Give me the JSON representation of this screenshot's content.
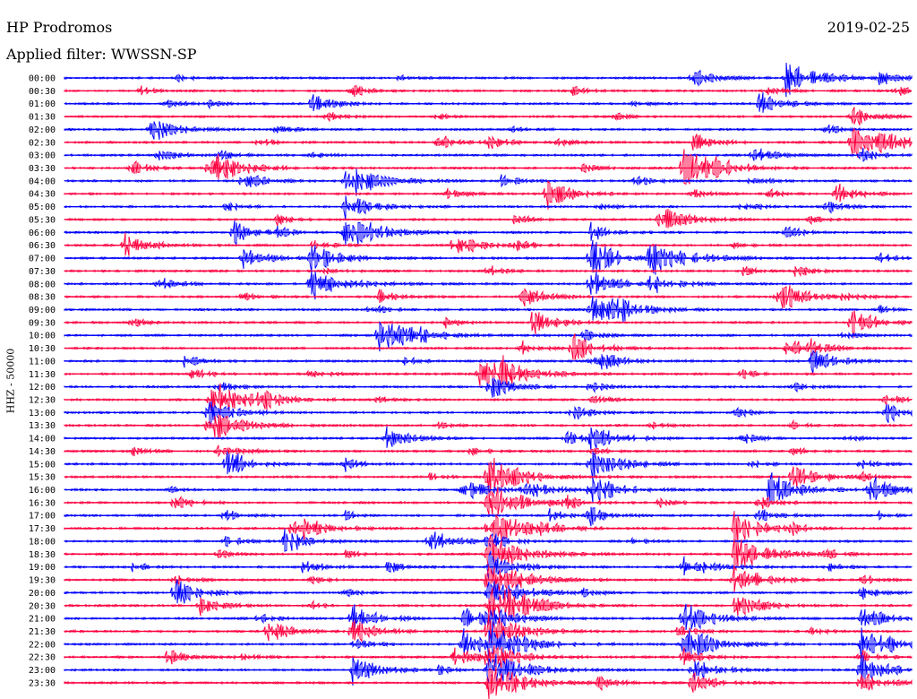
{
  "header": {
    "station": "HP Prodromos",
    "filter": "Applied filter: WWSSN-SP",
    "date": "2019-02-25"
  },
  "chart_data": {
    "type": "line",
    "title": "HP Prodromos",
    "subtitle": "Applied filter: WWSSN-SP",
    "ylabel": "HHZ - 50000",
    "date": "2019-02-25",
    "row_minutes": 30,
    "colors": [
      "#0000ff",
      "#ff0040"
    ],
    "rows": [
      {
        "label": "00:00",
        "color": "#0000ff",
        "events": [
          [
            13,
            0.4
          ],
          [
            74,
            0.9
          ],
          [
            85,
            1.6
          ],
          [
            96,
            0.7
          ],
          [
            39,
            0.3
          ]
        ]
      },
      {
        "label": "00:30",
        "color": "#ff0040",
        "events": [
          [
            9,
            0.4
          ],
          [
            34,
            0.5
          ],
          [
            60,
            0.4
          ],
          [
            83,
            0.4
          ],
          [
            98,
            0.5
          ]
        ]
      },
      {
        "label": "01:00",
        "color": "#0000ff",
        "events": [
          [
            12,
            0.4
          ],
          [
            17,
            0.3
          ],
          [
            29,
            0.9
          ],
          [
            82,
            1.0
          ],
          [
            67,
            0.3
          ]
        ]
      },
      {
        "label": "01:30",
        "color": "#ff0040",
        "events": [
          [
            31,
            0.5
          ],
          [
            44,
            0.3
          ],
          [
            93,
            0.9
          ],
          [
            65,
            0.3
          ]
        ]
      },
      {
        "label": "02:00",
        "color": "#0000ff",
        "events": [
          [
            10,
            1.2
          ],
          [
            25,
            0.4
          ],
          [
            53,
            0.3
          ],
          [
            90,
            0.4
          ]
        ]
      },
      {
        "label": "02:30",
        "color": "#ff0040",
        "events": [
          [
            23,
            0.4
          ],
          [
            44,
            0.8
          ],
          [
            50,
            0.6
          ],
          [
            58,
            0.4
          ],
          [
            74,
            0.9
          ],
          [
            93,
            1.4
          ],
          [
            96,
            1.0
          ]
        ]
      },
      {
        "label": "03:00",
        "color": "#0000ff",
        "events": [
          [
            11,
            0.6
          ],
          [
            18,
            0.5
          ],
          [
            29,
            0.4
          ],
          [
            81,
            0.8
          ],
          [
            94,
            0.6
          ]
        ]
      },
      {
        "label": "03:30",
        "color": "#ff0040",
        "events": [
          [
            8,
            0.6
          ],
          [
            17,
            1.6
          ],
          [
            61,
            0.5
          ],
          [
            73,
            1.7
          ],
          [
            76,
            0.9
          ]
        ]
      },
      {
        "label": "04:00",
        "color": "#0000ff",
        "events": [
          [
            21,
            0.8
          ],
          [
            33,
            1.7
          ],
          [
            51,
            0.6
          ],
          [
            67,
            0.6
          ],
          [
            81,
            0.5
          ]
        ]
      },
      {
        "label": "04:30",
        "color": "#ff0040",
        "events": [
          [
            45,
            0.5
          ],
          [
            57,
            1.2
          ],
          [
            74,
            0.4
          ],
          [
            83,
            0.4
          ],
          [
            91,
            0.9
          ]
        ]
      },
      {
        "label": "05:00",
        "color": "#0000ff",
        "events": [
          [
            19,
            0.4
          ],
          [
            33,
            1.2
          ],
          [
            63,
            0.4
          ],
          [
            80,
            0.5
          ],
          [
            90,
            0.6
          ]
        ]
      },
      {
        "label": "05:30",
        "color": "#ff0040",
        "events": [
          [
            25,
            0.5
          ],
          [
            53,
            0.5
          ],
          [
            70,
            1.3
          ],
          [
            88,
            0.4
          ]
        ]
      },
      {
        "label": "06:00",
        "color": "#0000ff",
        "events": [
          [
            20,
            1.0
          ],
          [
            25,
            0.5
          ],
          [
            33,
            1.8
          ],
          [
            62,
            0.8
          ],
          [
            85,
            0.6
          ]
        ]
      },
      {
        "label": "06:30",
        "color": "#ff0040",
        "events": [
          [
            7,
            1.1
          ],
          [
            29,
            0.6
          ],
          [
            46,
            1.1
          ],
          [
            53,
            0.6
          ],
          [
            79,
            0.3
          ]
        ]
      },
      {
        "label": "07:00",
        "color": "#0000ff",
        "events": [
          [
            21,
            1.0
          ],
          [
            29,
            1.3
          ],
          [
            62,
            1.6
          ],
          [
            69,
            1.8
          ],
          [
            96,
            0.5
          ]
        ]
      },
      {
        "label": "07:30",
        "color": "#ff0040",
        "events": [
          [
            31,
            0.4
          ],
          [
            50,
            0.5
          ],
          [
            80,
            0.4
          ],
          [
            86,
            0.6
          ]
        ]
      },
      {
        "label": "08:00",
        "color": "#0000ff",
        "events": [
          [
            11,
            0.6
          ],
          [
            29,
            1.6
          ],
          [
            62,
            1.2
          ],
          [
            69,
            1.0
          ]
        ]
      },
      {
        "label": "08:30",
        "color": "#ff0040",
        "events": [
          [
            21,
            0.4
          ],
          [
            37,
            0.6
          ],
          [
            54,
            1.0
          ],
          [
            84,
            1.5
          ],
          [
            92,
            0.4
          ]
        ]
      },
      {
        "label": "09:00",
        "color": "#0000ff",
        "events": [
          [
            36,
            0.5
          ],
          [
            62,
            1.8
          ],
          [
            65,
            0.7
          ],
          [
            96,
            0.4
          ]
        ]
      },
      {
        "label": "09:30",
        "color": "#ff0040",
        "events": [
          [
            8,
            0.4
          ],
          [
            45,
            0.4
          ],
          [
            55,
            1.1
          ],
          [
            93,
            1.2
          ]
        ]
      },
      {
        "label": "10:00",
        "color": "#0000ff",
        "events": [
          [
            37,
            1.7
          ],
          [
            40,
            0.8
          ],
          [
            61,
            0.6
          ],
          [
            92,
            0.4
          ]
        ]
      },
      {
        "label": "10:30",
        "color": "#ff0040",
        "events": [
          [
            54,
            0.6
          ],
          [
            60,
            1.2
          ],
          [
            85,
            1.0
          ],
          [
            88,
            0.6
          ]
        ]
      },
      {
        "label": "11:00",
        "color": "#0000ff",
        "events": [
          [
            14,
            0.6
          ],
          [
            40,
            0.4
          ],
          [
            62,
            1.2
          ],
          [
            88,
            1.1
          ]
        ]
      },
      {
        "label": "11:30",
        "color": "#ff0040",
        "events": [
          [
            15,
            0.6
          ],
          [
            29,
            0.5
          ],
          [
            49,
            1.2
          ],
          [
            51,
            1.4
          ],
          [
            80,
            0.4
          ]
        ]
      },
      {
        "label": "12:00",
        "color": "#0000ff",
        "events": [
          [
            18,
            0.5
          ],
          [
            50,
            1.1
          ],
          [
            62,
            0.5
          ],
          [
            86,
            0.4
          ]
        ]
      },
      {
        "label": "12:30",
        "color": "#ff0040",
        "events": [
          [
            17,
            1.8
          ],
          [
            23,
            0.8
          ],
          [
            37,
            0.4
          ],
          [
            62,
            0.5
          ],
          [
            97,
            0.5
          ]
        ]
      },
      {
        "label": "13:00",
        "color": "#0000ff",
        "events": [
          [
            17,
            1.2
          ],
          [
            60,
            0.7
          ],
          [
            79,
            0.5
          ],
          [
            97,
            1.0
          ]
        ]
      },
      {
        "label": "13:30",
        "color": "#ff0040",
        "events": [
          [
            17,
            1.5
          ],
          [
            44,
            0.3
          ],
          [
            69,
            0.4
          ],
          [
            86,
            0.3
          ]
        ]
      },
      {
        "label": "14:00",
        "color": "#0000ff",
        "events": [
          [
            38,
            1.0
          ],
          [
            59,
            0.7
          ],
          [
            62,
            1.2
          ],
          [
            80,
            0.5
          ],
          [
            92,
            0.4
          ]
        ]
      },
      {
        "label": "14:30",
        "color": "#ff0040",
        "events": [
          [
            8,
            0.4
          ],
          [
            18,
            0.8
          ],
          [
            48,
            0.4
          ],
          [
            62,
            0.4
          ],
          [
            86,
            0.4
          ]
        ]
      },
      {
        "label": "15:00",
        "color": "#0000ff",
        "events": [
          [
            19,
            1.3
          ],
          [
            33,
            0.6
          ],
          [
            62,
            1.5
          ],
          [
            81,
            0.4
          ],
          [
            94,
            0.5
          ]
        ]
      },
      {
        "label": "15:30",
        "color": "#ff0040",
        "events": [
          [
            43,
            0.4
          ],
          [
            50,
            1.8
          ],
          [
            86,
            1.2
          ],
          [
            94,
            0.4
          ]
        ]
      },
      {
        "label": "16:00",
        "color": "#0000ff",
        "events": [
          [
            12,
            0.4
          ],
          [
            47,
            1.0
          ],
          [
            54,
            1.0
          ],
          [
            62,
            1.4
          ],
          [
            83,
            1.5
          ],
          [
            95,
            1.2
          ]
        ]
      },
      {
        "label": "16:30",
        "color": "#ff0040",
        "events": [
          [
            13,
            0.7
          ],
          [
            50,
            1.8
          ],
          [
            59,
            0.6
          ],
          [
            70,
            0.4
          ],
          [
            82,
            0.6
          ]
        ]
      },
      {
        "label": "17:00",
        "color": "#0000ff",
        "events": [
          [
            19,
            0.5
          ],
          [
            33,
            0.4
          ],
          [
            57,
            0.6
          ],
          [
            62,
            0.8
          ],
          [
            82,
            0.6
          ],
          [
            96,
            0.4
          ]
        ]
      },
      {
        "label": "17:30",
        "color": "#ff0040",
        "events": [
          [
            27,
            1.4
          ],
          [
            50,
            1.8
          ],
          [
            56,
            0.5
          ],
          [
            79,
            1.5
          ],
          [
            86,
            0.4
          ]
        ]
      },
      {
        "label": "18:00",
        "color": "#0000ff",
        "events": [
          [
            19,
            0.5
          ],
          [
            26,
            1.1
          ],
          [
            43,
            1.2
          ],
          [
            50,
            0.8
          ],
          [
            67,
            0.4
          ]
        ]
      },
      {
        "label": "18:30",
        "color": "#ff0040",
        "events": [
          [
            18,
            0.4
          ],
          [
            33,
            0.4
          ],
          [
            50,
            1.8
          ],
          [
            79,
            1.6
          ],
          [
            90,
            0.4
          ]
        ]
      },
      {
        "label": "19:00",
        "color": "#0000ff",
        "events": [
          [
            8,
            0.5
          ],
          [
            28,
            0.7
          ],
          [
            38,
            0.6
          ],
          [
            50,
            1.3
          ],
          [
            73,
            1.3
          ],
          [
            90,
            0.4
          ]
        ]
      },
      {
        "label": "19:30",
        "color": "#ff0040",
        "events": [
          [
            13,
            0.5
          ],
          [
            29,
            0.4
          ],
          [
            50,
            1.8
          ],
          [
            79,
            1.4
          ],
          [
            94,
            0.6
          ]
        ]
      },
      {
        "label": "20:00",
        "color": "#0000ff",
        "events": [
          [
            13,
            1.2
          ],
          [
            33,
            0.4
          ],
          [
            50,
            1.6
          ],
          [
            61,
            0.4
          ],
          [
            94,
            0.6
          ]
        ]
      },
      {
        "label": "20:30",
        "color": "#ff0040",
        "events": [
          [
            16,
            0.8
          ],
          [
            29,
            0.4
          ],
          [
            50,
            1.6
          ],
          [
            52,
            1.3
          ],
          [
            79,
            1.2
          ]
        ]
      },
      {
        "label": "21:00",
        "color": "#0000ff",
        "events": [
          [
            23,
            0.4
          ],
          [
            34,
            1.2
          ],
          [
            47,
            1.0
          ],
          [
            50,
            1.2
          ],
          [
            73,
            1.4
          ],
          [
            94,
            1.1
          ]
        ]
      },
      {
        "label": "21:30",
        "color": "#ff0040",
        "events": [
          [
            24,
            1.0
          ],
          [
            34,
            1.1
          ],
          [
            50,
            1.6
          ],
          [
            72,
            0.6
          ],
          [
            88,
            0.4
          ]
        ]
      },
      {
        "label": "22:00",
        "color": "#0000ff",
        "events": [
          [
            34,
            0.6
          ],
          [
            47,
            1.3
          ],
          [
            50,
            1.8
          ],
          [
            73,
            1.6
          ],
          [
            94,
            1.7
          ]
        ]
      },
      {
        "label": "22:30",
        "color": "#ff0040",
        "events": [
          [
            12,
            0.7
          ],
          [
            20,
            0.5
          ],
          [
            46,
            1.0
          ],
          [
            50,
            1.4
          ],
          [
            73,
            0.8
          ],
          [
            94,
            0.6
          ]
        ]
      },
      {
        "label": "23:00",
        "color": "#0000ff",
        "events": [
          [
            34,
            1.2
          ],
          [
            44,
            0.4
          ],
          [
            50,
            1.8
          ],
          [
            74,
            1.2
          ],
          [
            94,
            1.3
          ]
        ]
      },
      {
        "label": "23:30",
        "color": "#ff0040",
        "events": [
          [
            50,
            1.8
          ],
          [
            63,
            0.6
          ],
          [
            74,
            1.0
          ],
          [
            94,
            1.0
          ]
        ]
      }
    ]
  }
}
